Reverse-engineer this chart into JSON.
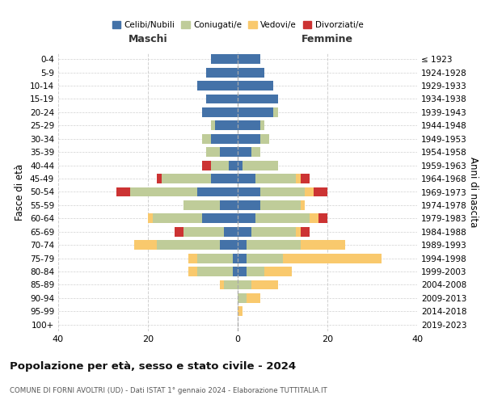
{
  "age_groups": [
    "0-4",
    "5-9",
    "10-14",
    "15-19",
    "20-24",
    "25-29",
    "30-34",
    "35-39",
    "40-44",
    "45-49",
    "50-54",
    "55-59",
    "60-64",
    "65-69",
    "70-74",
    "75-79",
    "80-84",
    "85-89",
    "90-94",
    "95-99",
    "100+"
  ],
  "birth_years": [
    "2019-2023",
    "2014-2018",
    "2009-2013",
    "2004-2008",
    "1999-2003",
    "1994-1998",
    "1989-1993",
    "1984-1988",
    "1979-1983",
    "1974-1978",
    "1969-1973",
    "1964-1968",
    "1959-1963",
    "1954-1958",
    "1949-1953",
    "1944-1948",
    "1939-1943",
    "1934-1938",
    "1929-1933",
    "1924-1928",
    "≤ 1923"
  ],
  "male": {
    "celibi": [
      6,
      7,
      9,
      7,
      8,
      5,
      6,
      4,
      2,
      6,
      9,
      4,
      8,
      3,
      4,
      1,
      1,
      0,
      0,
      0,
      0
    ],
    "coniugati": [
      0,
      0,
      0,
      0,
      0,
      1,
      2,
      3,
      4,
      11,
      15,
      8,
      11,
      9,
      14,
      8,
      8,
      3,
      0,
      0,
      0
    ],
    "vedovi": [
      0,
      0,
      0,
      0,
      0,
      0,
      0,
      0,
      0,
      0,
      0,
      0,
      1,
      0,
      5,
      2,
      2,
      1,
      0,
      0,
      0
    ],
    "divorziati": [
      0,
      0,
      0,
      0,
      0,
      0,
      0,
      0,
      2,
      1,
      3,
      0,
      0,
      2,
      0,
      0,
      0,
      0,
      0,
      0,
      0
    ]
  },
  "female": {
    "nubili": [
      5,
      6,
      8,
      9,
      8,
      5,
      5,
      3,
      1,
      4,
      5,
      5,
      4,
      3,
      2,
      2,
      2,
      0,
      0,
      0,
      0
    ],
    "coniugate": [
      0,
      0,
      0,
      0,
      1,
      1,
      2,
      2,
      8,
      9,
      10,
      9,
      12,
      10,
      12,
      8,
      4,
      3,
      2,
      0,
      0
    ],
    "vedove": [
      0,
      0,
      0,
      0,
      0,
      0,
      0,
      0,
      0,
      1,
      2,
      1,
      2,
      1,
      10,
      22,
      6,
      6,
      3,
      1,
      0
    ],
    "divorziate": [
      0,
      0,
      0,
      0,
      0,
      0,
      0,
      0,
      0,
      2,
      3,
      0,
      2,
      2,
      0,
      0,
      0,
      0,
      0,
      0,
      0
    ]
  },
  "colors": {
    "celibi": "#4472A8",
    "coniugati": "#BFCC99",
    "vedovi": "#F9C96D",
    "divorziati": "#CC3333"
  },
  "xlim": 40,
  "title": "Popolazione per età, sesso e stato civile - 2024",
  "subtitle": "COMUNE DI FORNI AVOLTRI (UD) - Dati ISTAT 1° gennaio 2024 - Elaborazione TUTTITALIA.IT",
  "xlabel_left": "Maschi",
  "xlabel_right": "Femmine",
  "ylabel_left": "Fasce di età",
  "ylabel_right": "Anni di nascita",
  "legend_labels": [
    "Celibi/Nubili",
    "Coniugati/e",
    "Vedovi/e",
    "Divorziati/e"
  ],
  "background_color": "#ffffff",
  "grid_color": "#cccccc"
}
